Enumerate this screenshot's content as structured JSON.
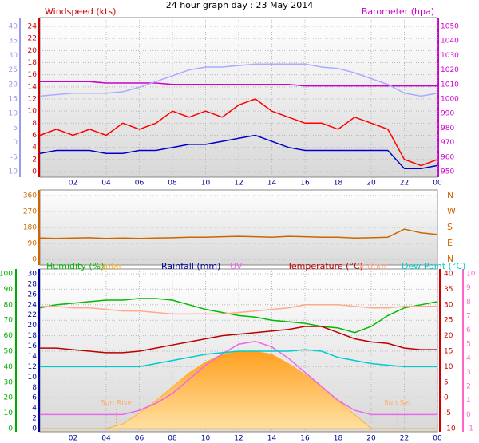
{
  "chart_data": [
    {
      "type": "line",
      "title": "24 hour graph day : 23 May 2014",
      "x": [
        0,
        1,
        2,
        3,
        4,
        5,
        6,
        7,
        8,
        9,
        10,
        11,
        12,
        13,
        14,
        15,
        16,
        17,
        18,
        19,
        20,
        21,
        22,
        23,
        24
      ],
      "xlim": [
        0,
        24
      ],
      "xticks": [
        {
          "value": 2,
          "label": "02"
        },
        {
          "value": 4,
          "label": "04"
        },
        {
          "value": 6,
          "label": "06"
        },
        {
          "value": 8,
          "label": "08"
        },
        10,
        12,
        14,
        16,
        18,
        20,
        22,
        {
          "value": 24,
          "label": "00"
        }
      ],
      "axes": [
        {
          "label": "Windspeed (kts)",
          "color": "#cc0000",
          "ylim": [
            0,
            24
          ],
          "yticks": [
            0,
            2,
            4,
            6,
            8,
            10,
            12,
            14,
            16,
            18,
            20,
            22,
            24
          ]
        },
        {
          "color": "#9999ee",
          "ylim": [
            -10,
            40
          ],
          "yticks": [
            -10,
            -5,
            0,
            5,
            10,
            15,
            20,
            25,
            30,
            35,
            40
          ]
        },
        {
          "label": "Barometer (hpa)",
          "color": "#cc00cc",
          "ylim": [
            950,
            1050
          ],
          "yticks": [
            950,
            960,
            970,
            980,
            990,
            1000,
            1010,
            1020,
            1030,
            1040,
            1050
          ]
        }
      ],
      "grid": true,
      "series": [
        {
          "color": "#ff0000",
          "axis": 0,
          "values": [
            6,
            7,
            6,
            7,
            6,
            8,
            7,
            8,
            10,
            9,
            10,
            9,
            11,
            12,
            10,
            9,
            8,
            8,
            7,
            9,
            8,
            7,
            2,
            1,
            2
          ]
        },
        {
          "color": "#0000cc",
          "axis": 0,
          "values": [
            3,
            3.5,
            3.5,
            3.5,
            3,
            3,
            3.5,
            3.5,
            4,
            4.5,
            4.5,
            5,
            5.5,
            6,
            5,
            4,
            3.5,
            3.5,
            3.5,
            3.5,
            3.5,
            3.5,
            0.5,
            0.5,
            1
          ]
        },
        {
          "color": "#cc00cc",
          "axis": 2,
          "values": [
            1012,
            1012,
            1012,
            1012,
            1011,
            1011,
            1011,
            1011,
            1010,
            1010,
            1010,
            1010,
            1010,
            1010,
            1010,
            1010,
            1009,
            1009,
            1009,
            1009,
            1009,
            1009,
            1009,
            1009,
            1009
          ]
        },
        {
          "color": "#aaaaff",
          "axis": 1,
          "values": [
            16,
            16.5,
            17,
            17,
            17,
            17.5,
            19,
            21,
            23,
            25,
            26,
            26,
            26.5,
            27,
            27,
            27,
            27,
            26,
            25.5,
            24,
            22,
            20,
            17,
            16,
            17
          ]
        }
      ]
    },
    {
      "type": "line",
      "x": [
        0,
        1,
        2,
        3,
        4,
        5,
        6,
        7,
        8,
        9,
        10,
        11,
        12,
        13,
        14,
        15,
        16,
        17,
        18,
        19,
        20,
        21,
        22,
        23,
        24
      ],
      "xlim": [
        0,
        24
      ],
      "axes": [
        {
          "color": "#cc6600",
          "ylim": [
            0,
            360
          ],
          "yticks": [
            0,
            90,
            180,
            270,
            360
          ]
        }
      ],
      "compass": [
        "N",
        "W",
        "S",
        "E",
        "N"
      ],
      "grid": true,
      "series": [
        {
          "color": "#cc6600",
          "axis": 0,
          "values": [
            120,
            118,
            120,
            122,
            118,
            120,
            118,
            120,
            122,
            125,
            125,
            128,
            130,
            128,
            125,
            130,
            128,
            125,
            125,
            120,
            122,
            125,
            170,
            150,
            140
          ]
        }
      ]
    },
    {
      "type": "line",
      "x": [
        0,
        1,
        2,
        3,
        4,
        5,
        6,
        7,
        8,
        9,
        10,
        11,
        12,
        13,
        14,
        15,
        16,
        17,
        18,
        19,
        20,
        21,
        22,
        23,
        24
      ],
      "xlim": [
        0,
        24
      ],
      "xticks": [
        {
          "value": 2,
          "label": "02"
        },
        {
          "value": 4,
          "label": "04"
        },
        {
          "value": 6,
          "label": "06"
        },
        {
          "value": 8,
          "label": "08"
        },
        10,
        12,
        14,
        16,
        18,
        20,
        22,
        {
          "value": 24,
          "label": "00"
        }
      ],
      "axes": [
        {
          "color": "#00aa00",
          "ylim": [
            0,
            100
          ],
          "yticks": [
            0,
            10,
            20,
            30,
            40,
            50,
            60,
            70,
            80,
            90,
            100
          ]
        },
        {
          "label": "Rainfall (mm)",
          "color": "#000099",
          "ylim": [
            0,
            30
          ],
          "yticks": [
            0,
            2,
            4,
            6,
            8,
            10,
            12,
            14,
            16,
            18,
            20,
            22,
            24,
            26,
            28,
            30
          ]
        },
        {
          "color": "#cc0000",
          "ylim": [
            -10,
            40
          ],
          "yticks": [
            -10,
            -5,
            0,
            5,
            10,
            15,
            20,
            25,
            30,
            35,
            40
          ]
        },
        {
          "color": "#ff66cc",
          "ylim": [
            -1,
            10
          ],
          "yticks": [
            -1,
            0,
            1,
            2,
            3,
            4,
            5,
            6,
            7,
            8,
            9,
            10
          ]
        }
      ],
      "grid": true,
      "series": [
        {
          "name": "Humidity (%)",
          "color": "#00bb00",
          "axis": 0,
          "values": [
            78,
            80,
            81,
            82,
            83,
            83,
            84,
            84,
            83,
            80,
            77,
            75,
            73,
            72,
            70,
            69,
            68,
            66,
            65,
            62,
            66,
            73,
            78,
            80,
            82
          ]
        },
        {
          "name": "Solar",
          "color": "#ffb030",
          "axis": 0,
          "area": true,
          "values": [
            0,
            0,
            0,
            0,
            0,
            3,
            10,
            18,
            27,
            36,
            43,
            48,
            50,
            50,
            48,
            42,
            35,
            27,
            18,
            9,
            0,
            0,
            0,
            0,
            0
          ]
        },
        {
          "name": "UV",
          "color": "#ee66ee",
          "axis": 3,
          "values": [
            0,
            0,
            0,
            0,
            0,
            0,
            0.3,
            0.8,
            1.5,
            2.5,
            3.5,
            4.3,
            5,
            5.2,
            4.8,
            4,
            3,
            2,
            1,
            0.3,
            0,
            0,
            0,
            0,
            0
          ]
        },
        {
          "name": "Temperature (°C)",
          "color": "#bb0000",
          "axis": 2,
          "values": [
            16,
            16,
            15.5,
            15,
            14.5,
            14.5,
            15,
            16,
            17,
            18,
            19,
            20,
            20.5,
            21,
            21.5,
            22,
            23,
            23,
            21,
            19,
            18,
            17.5,
            16,
            15.5,
            15.5
          ]
        },
        {
          "name": "Indoor",
          "color": "#ffaa88",
          "axis": 2,
          "values": [
            29.5,
            29.5,
            29,
            29,
            28.5,
            28,
            28,
            27.5,
            27,
            27,
            27,
            27,
            27.5,
            28,
            28.5,
            29,
            30,
            30,
            30,
            29.5,
            29,
            29,
            29.5,
            29.5,
            29.5
          ]
        },
        {
          "name": "Dew Point (°C)",
          "color": "#00cccc",
          "axis": 2,
          "values": [
            10,
            10,
            10,
            10,
            10,
            10,
            10,
            11,
            12,
            13,
            14,
            14.5,
            15,
            15,
            15,
            15,
            15.5,
            15,
            13,
            12,
            11,
            10.5,
            10,
            10,
            10
          ]
        }
      ],
      "annotations": [
        {
          "text": "Sun Rise",
          "x": 4.6
        },
        {
          "text": "Sun Set",
          "x": 21.6
        }
      ]
    }
  ]
}
